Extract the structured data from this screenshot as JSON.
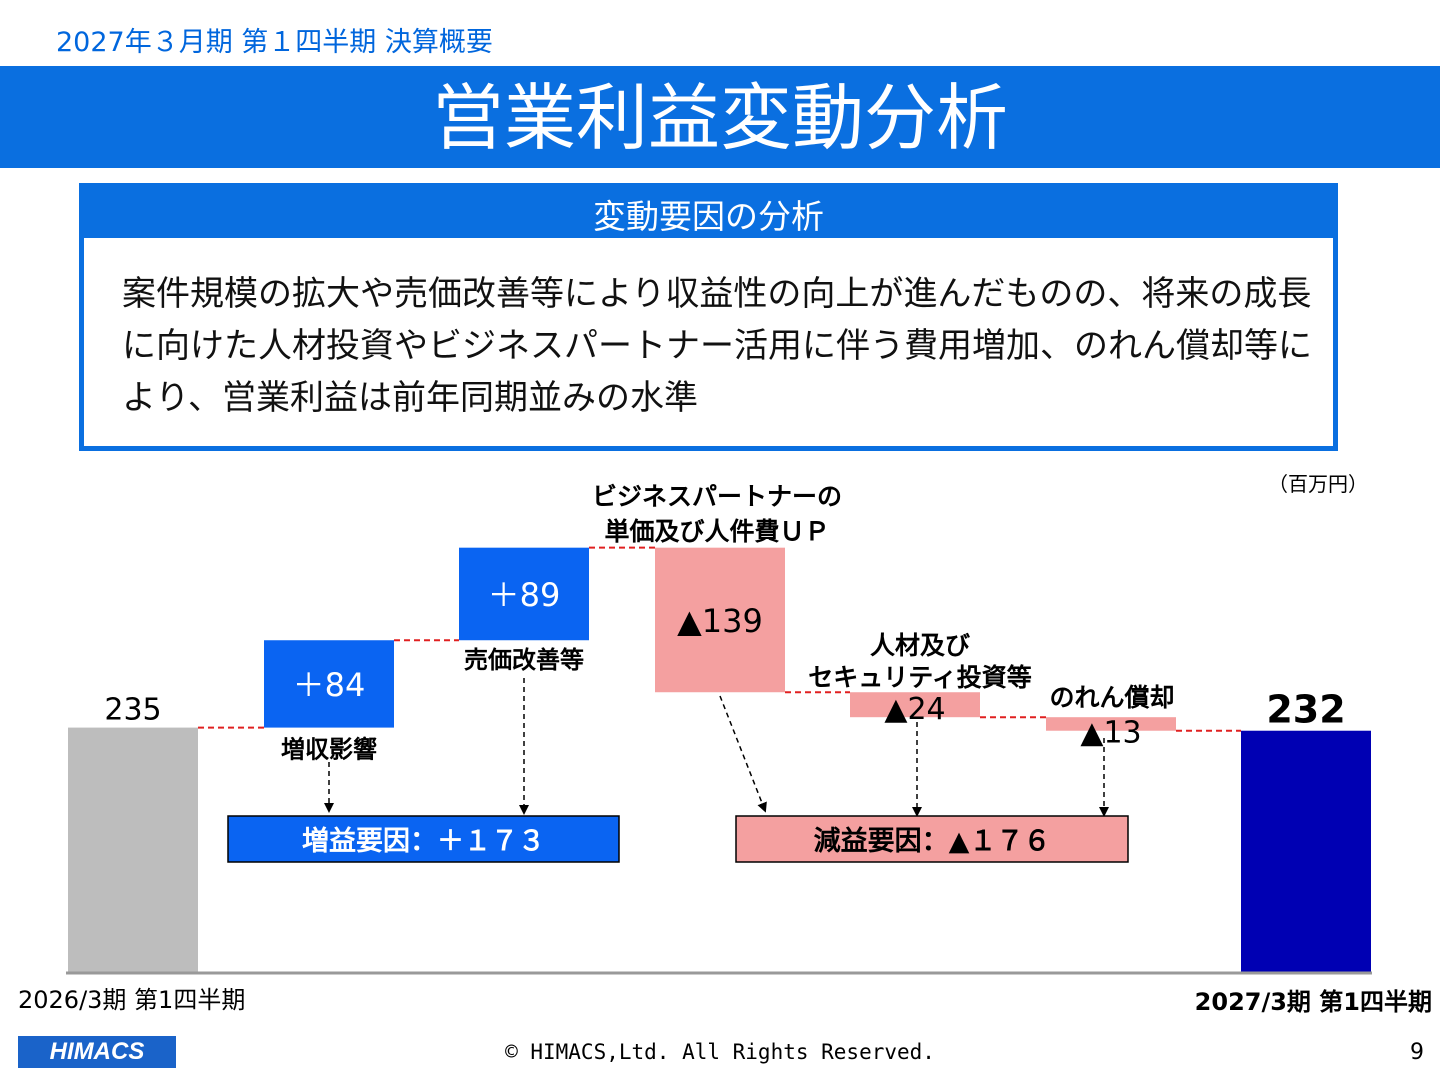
{
  "header": {
    "period_label": "2027年３月期 第１四半期 決算概要",
    "title": "営業利益変動分析"
  },
  "analysis": {
    "heading": "変動要因の分析",
    "body": "案件規模の拡大や売価改善等により収益性の向上が進んだものの、将来の成長に向けた人材投資やビジネスパートナー活用に伴う費用増加、のれん償却等により、営業利益は前年同期並みの水準"
  },
  "colors": {
    "accent_blue": "#0a6fe0",
    "increase": "#0a64f2",
    "decrease": "#f4a0a0",
    "start_bar": "#bdbdbd",
    "end_bar": "#0000b3",
    "connector": "#e02020"
  },
  "chart_data": {
    "type": "bar",
    "unit_label": "（百万円）",
    "ylim": [
      0,
      335
    ],
    "steps": [
      {
        "kind": "start",
        "category": "2026/3期 第1四半期",
        "value": 235,
        "value_label": "235"
      },
      {
        "kind": "increase",
        "category": "増収影響",
        "value": 84,
        "value_label": "＋84"
      },
      {
        "kind": "increase",
        "category": "売価改善等",
        "value": 89,
        "value_label": "＋89"
      },
      {
        "kind": "decrease",
        "category": "ビジネスパートナーの単価及び人件費ＵＰ",
        "value": -139,
        "value_label": "▲139"
      },
      {
        "kind": "decrease",
        "category": "人材及びセキュリティ投資等",
        "value": -24,
        "value_label": "▲24"
      },
      {
        "kind": "decrease",
        "category": "のれん償却",
        "value": -13,
        "value_label": "▲13"
      },
      {
        "kind": "end",
        "category": "2027/3期 第1四半期",
        "value": 232,
        "value_label": "232"
      }
    ],
    "summary_boxes": [
      {
        "kind": "increase",
        "label": "増益要因：＋１７３"
      },
      {
        "kind": "decrease",
        "label": "減益要因：▲１７６"
      }
    ]
  },
  "footer": {
    "copyright": "© HIMACS,Ltd. All Rights Reserved.",
    "page_number": "9",
    "logo_text": "HIMACS"
  }
}
